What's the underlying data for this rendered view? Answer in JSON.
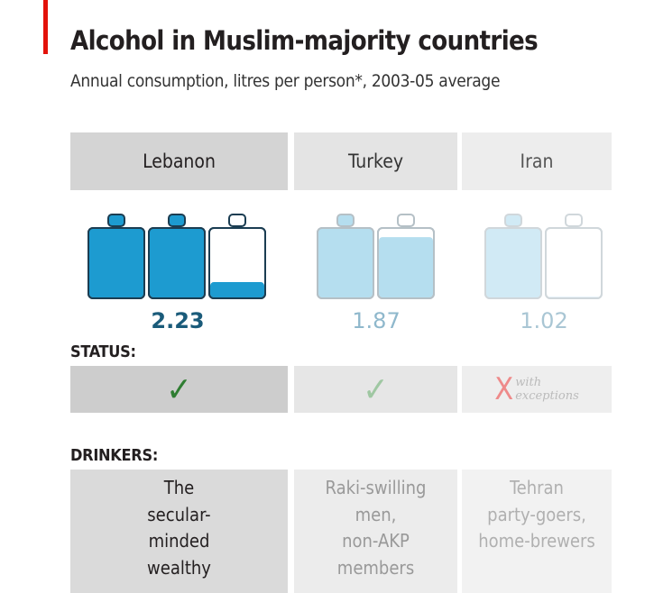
{
  "header": {
    "title": "Alcohol in Muslim-majority countries",
    "subtitle": "Annual consumption, litres per person*, 2003-05 average"
  },
  "colors": {
    "accent_red": "#e3120b",
    "bottle_blue": "#1d9bd0",
    "check_green": "#2f7d32"
  },
  "chart_data": {
    "type": "bar",
    "categories": [
      "Lebanon",
      "Turkey",
      "Iran"
    ],
    "values": [
      2.23,
      1.87,
      1.02
    ],
    "value_labels": [
      "2.23",
      "1.87",
      "1.02"
    ],
    "unit_glyph": "bottle",
    "bottles_shown": [
      3,
      2,
      2
    ],
    "status": [
      "allowed",
      "allowed",
      "not allowed"
    ]
  },
  "labels": {
    "status": "STATUS:",
    "drinkers": "DRINKERS:",
    "check": "✓",
    "cross": "X",
    "exception_note": "with\nexceptions"
  },
  "drinkers": [
    "The\nsecular-\nminded\nwealthy",
    "Raki-swilling\nmen,\nnon-AKP\nmembers",
    "Tehran\nparty-goers,\nhome-brewers"
  ]
}
